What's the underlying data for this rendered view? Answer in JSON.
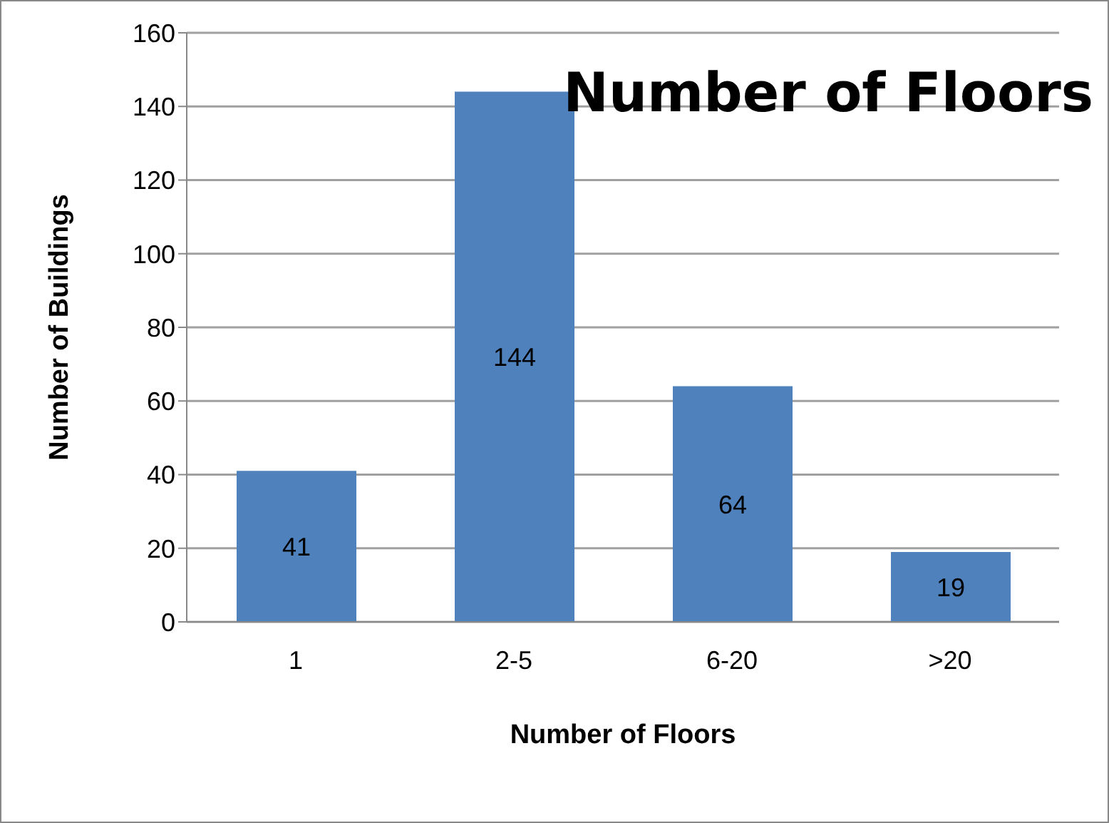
{
  "chart_data": {
    "type": "bar",
    "title": "Number of Floors",
    "xlabel": "Number of Floors",
    "ylabel": "Number of Buildings",
    "categories": [
      "1",
      "2-5",
      "6-20",
      ">20"
    ],
    "values": [
      41,
      144,
      64,
      19
    ],
    "color": "#4f81bd",
    "ylim": [
      0,
      160
    ],
    "yticks": [
      0,
      20,
      40,
      60,
      80,
      100,
      120,
      140,
      160
    ],
    "grid": "y",
    "data_labels": true
  }
}
